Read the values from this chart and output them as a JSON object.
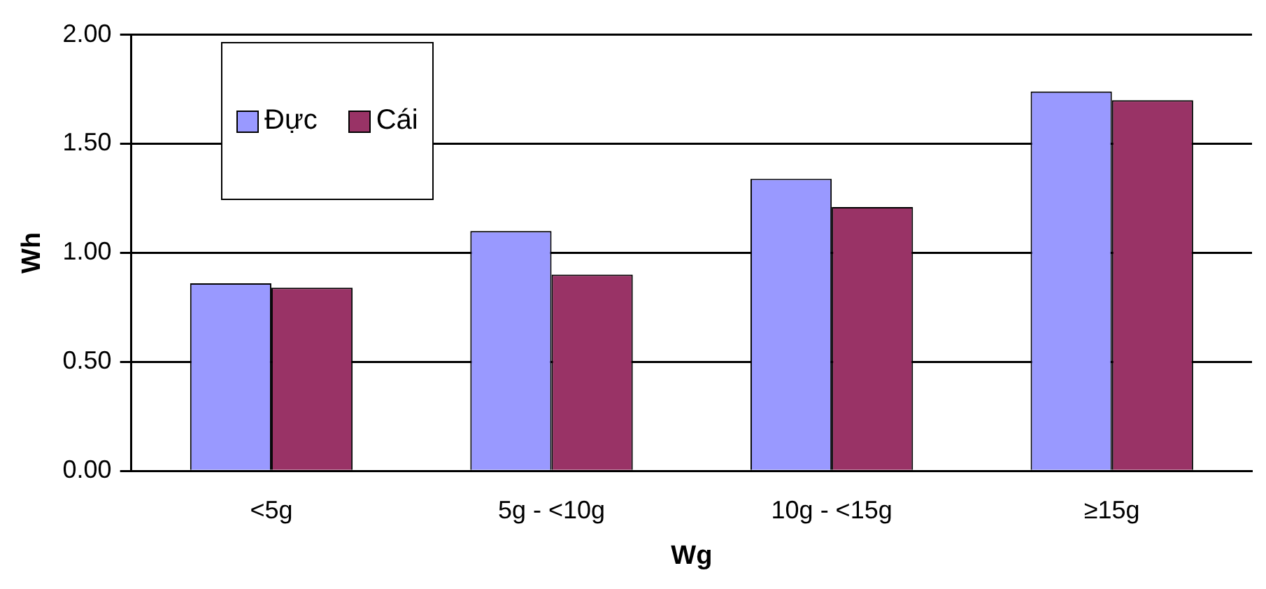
{
  "chart_data": {
    "type": "bar",
    "xlabel": "Wg",
    "ylabel": "Wh",
    "categories": [
      "<5g",
      "5g - <10g",
      "10g - <15g",
      "≥15g"
    ],
    "series": [
      {
        "name": "Đực",
        "color": "#9999ff",
        "values": [
          0.86,
          1.1,
          1.34,
          1.74
        ]
      },
      {
        "name": "Cái",
        "color": "#993366",
        "values": [
          0.84,
          0.9,
          1.21,
          1.7
        ]
      }
    ],
    "ylim": [
      0,
      2
    ],
    "yticks": [
      {
        "value": 0,
        "label": "0.00"
      },
      {
        "value": 0.5,
        "label": "0.50"
      },
      {
        "value": 1,
        "label": "1.00"
      },
      {
        "value": 1.5,
        "label": "1.50"
      },
      {
        "value": 2,
        "label": "2.00"
      }
    ],
    "grid": "y",
    "legend": "top left"
  }
}
